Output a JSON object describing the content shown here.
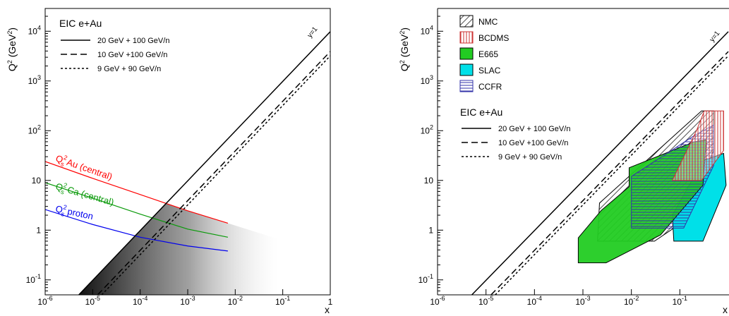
{
  "colors": {
    "red": "#ff0000",
    "green": "#0a9a0a",
    "blue": "#0000ee",
    "e665": "#22cc22",
    "slac": "#00e0e8",
    "nmc": "#000000",
    "bcdms": "#cc3333",
    "ccfr": "#3333aa"
  },
  "chart_data": [
    {
      "type": "line",
      "title": "",
      "xlabel": "x",
      "ylabel": "Q² (GeV²)",
      "xscale": "log",
      "yscale": "log",
      "xlim": [
        1e-06,
        1
      ],
      "ylim": [
        0.05,
        20000
      ],
      "xtick_labels": [
        "10-6",
        "10-5",
        "10-4",
        "10-3",
        "10-2",
        "10-1",
        "1"
      ],
      "ytick_labels": [
        "10-1",
        "1",
        "10",
        "102",
        "103",
        "104"
      ],
      "legend": {
        "title": "EIC e+Au",
        "placement": "top-left",
        "entries": [
          {
            "label": "20 GeV + 100 GeV/n",
            "style": "solid"
          },
          {
            "label": "10 GeV +100 GeV/n",
            "style": "dashed"
          },
          {
            "label": "9 GeV + 90 GeV/n",
            "style": "dotted"
          }
        ]
      },
      "kinematic_limits": [
        {
          "label": "20 GeV + 100 GeV/n",
          "style": "solid",
          "x": [
            5.1e-06,
            1
          ],
          "y": [
            0.05,
            9800
          ]
        },
        {
          "label": "10 GeV +100 GeV/n",
          "style": "dashed",
          "x": [
            1.27e-05,
            1
          ],
          "y": [
            0.05,
            3900
          ]
        },
        {
          "label": "9 GeV + 90 GeV/n",
          "style": "dotted",
          "x": [
            1.55e-05,
            1
          ],
          "y": [
            0.05,
            3200
          ]
        }
      ],
      "annotations": [
        {
          "text": "y=1",
          "x": 0.33,
          "y": 3200
        }
      ],
      "series": [
        {
          "name": "Qs² Au (central)",
          "color": "#ff0000",
          "x": [
            1e-06,
            1e-05,
            0.0001,
            0.001,
            0.007
          ],
          "y": [
            24,
            11,
            5.2,
            2.45,
            1.38
          ]
        },
        {
          "name": "Qs² Ca (central)",
          "color": "#0a9a0a",
          "x": [
            1e-06,
            1e-05,
            0.0001,
            0.001,
            0.007
          ],
          "y": [
            9,
            4.4,
            2.1,
            1.05,
            0.72
          ]
        },
        {
          "name": "Qs² proton",
          "color": "#0000ee",
          "x": [
            1e-06,
            1e-05,
            0.0001,
            0.001,
            0.007
          ],
          "y": [
            2.6,
            1.3,
            0.72,
            0.48,
            0.38
          ]
        }
      ],
      "curve_labels": [
        {
          "sup": "2",
          "sub": "s",
          "rest": " Au (central)"
        },
        {
          "sup": "2",
          "sub": "s",
          "rest": " Ca (central)"
        },
        {
          "sup": "2",
          "sub": "s",
          "rest": " proton"
        }
      ],
      "saturation_region": {
        "fill": "grey gradient, dark at low x",
        "x_range": [
          5e-06,
          0.08
        ]
      }
    },
    {
      "type": "area",
      "title": "",
      "xlabel": "x",
      "ylabel": "Q² (GeV²)",
      "xscale": "log",
      "yscale": "log",
      "xlim": [
        1e-06,
        1
      ],
      "ylim": [
        0.05,
        20000
      ],
      "xtick_labels": [
        "10-6",
        "10-5",
        "10-4",
        "10-3",
        "10-2",
        "10-1"
      ],
      "ytick_labels": [
        "10-1",
        "1",
        "10",
        "102",
        "103",
        "104"
      ],
      "legend": {
        "placement": "top-left",
        "entries": [
          {
            "label": "NMC",
            "pattern": "diagonal hatch"
          },
          {
            "label": "BCDMS",
            "pattern": "red vertical hatch"
          },
          {
            "label": "E665",
            "pattern": "green fill"
          },
          {
            "label": "SLAC",
            "pattern": "cyan fill"
          },
          {
            "label": "CCFR",
            "pattern": "blue horizontal hatch"
          }
        ],
        "eic_title": "EIC e+Au",
        "eic_entries": [
          {
            "label": "20 GeV + 100 GeV/n",
            "style": "solid"
          },
          {
            "label": "10 GeV +100 GeV/n",
            "style": "dashed"
          },
          {
            "label": "9 GeV + 90 GeV/n",
            "style": "dotted"
          }
        ]
      },
      "annotations": [
        {
          "text": "y=1"
        }
      ],
      "regions": [
        {
          "name": "NMC",
          "points": [
            [
              0.0022,
              3.5
            ],
            [
              0.28,
              250
            ],
            [
              0.5,
              250
            ],
            [
              0.5,
              40
            ],
            [
              0.12,
              1.5
            ],
            [
              0.03,
              0.6
            ],
            [
              0.002,
              0.6
            ]
          ]
        },
        {
          "name": "BCDMS",
          "points": [
            [
              0.07,
              10
            ],
            [
              0.22,
              100
            ],
            [
              0.32,
              250
            ],
            [
              0.45,
              250
            ],
            [
              0.8,
              250
            ],
            [
              0.8,
              40
            ],
            [
              0.28,
              10
            ]
          ]
        },
        {
          "name": "E665",
          "points": [
            [
              0.0008,
              0.22
            ],
            [
              0.0008,
              0.7
            ],
            [
              0.0024,
              2.5
            ],
            [
              0.009,
              7.5
            ],
            [
              0.009,
              18
            ],
            [
              0.2,
              60
            ],
            [
              0.35,
              65
            ],
            [
              0.3,
              8
            ],
            [
              0.04,
              0.8
            ],
            [
              0.003,
              0.22
            ]
          ]
        },
        {
          "name": "SLAC",
          "points": [
            [
              0.075,
              0.6
            ],
            [
              0.07,
              2
            ],
            [
              0.3,
              25
            ],
            [
              0.8,
              35
            ],
            [
              0.9,
              8
            ],
            [
              0.3,
              0.6
            ]
          ]
        },
        {
          "name": "CCFR",
          "points": [
            [
              0.01,
              1.1
            ],
            [
              0.01,
              12
            ],
            [
              0.2,
              80
            ],
            [
              0.5,
              130
            ],
            [
              0.5,
              20
            ],
            [
              0.12,
              1.1
            ]
          ]
        }
      ]
    }
  ]
}
